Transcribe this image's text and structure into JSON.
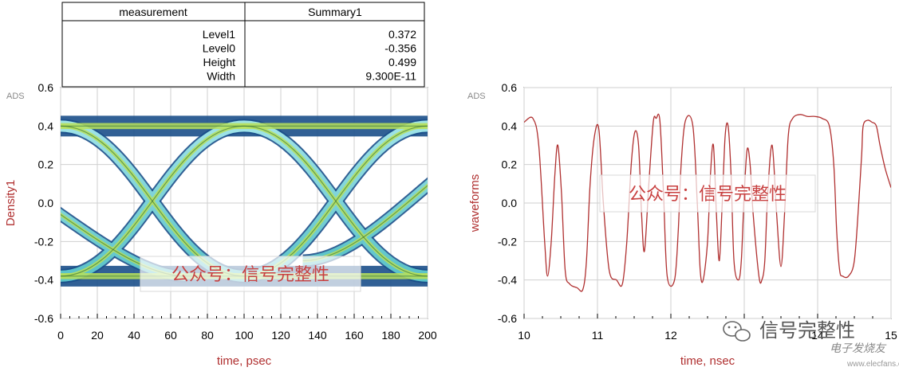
{
  "measurement_table": {
    "header": [
      "measurement",
      "Summary1"
    ],
    "rows": [
      {
        "name": "Level1",
        "value": "0.372"
      },
      {
        "name": "Level0",
        "value": "-0.356"
      },
      {
        "name": "Height",
        "value": "0.499"
      },
      {
        "name": "Width",
        "value": "9.300E-11"
      }
    ]
  },
  "chart_data": [
    {
      "type": "line",
      "title": "",
      "corner_label": "ADS",
      "xlabel": "time, psec",
      "ylabel": "Density1",
      "xlim": [
        0,
        200
      ],
      "ylim": [
        -0.6,
        0.6
      ],
      "x_ticks": [
        0,
        20,
        40,
        60,
        80,
        100,
        120,
        140,
        160,
        180,
        200
      ],
      "y_ticks": [
        -0.6,
        -0.4,
        -0.2,
        0.0,
        0.2,
        0.4,
        0.6
      ],
      "grid": true,
      "level_high": 0.4,
      "level_low": -0.38,
      "eye_crossings": [
        50,
        150
      ],
      "watermark": "公众号：信号完整性"
    },
    {
      "type": "line",
      "title": "",
      "corner_label": "ADS",
      "xlabel": "time, nsec",
      "ylabel": "waveforms",
      "xlim": [
        10,
        15
      ],
      "ylim": [
        -0.6,
        0.6
      ],
      "x_ticks": [
        10,
        11,
        12,
        13,
        14,
        15
      ],
      "y_ticks": [
        -0.6,
        -0.4,
        -0.2,
        0.0,
        0.2,
        0.4,
        0.6
      ],
      "grid": true,
      "line_color": "#b03030",
      "series": [
        {
          "x": [
            10.0,
            10.12,
            10.2,
            10.28,
            10.32,
            10.37,
            10.42,
            10.46,
            10.51,
            10.56,
            10.62,
            10.72,
            10.8,
            10.85,
            10.9,
            10.96,
            11.02,
            11.08,
            11.16,
            11.26,
            11.34,
            11.4,
            11.46,
            11.51,
            11.56,
            11.6,
            11.64,
            11.7,
            11.76,
            11.8,
            11.85,
            11.9,
            11.95,
            12.05,
            12.1,
            12.14,
            12.2,
            12.3,
            12.36,
            12.4,
            12.44,
            12.5,
            12.54,
            12.58,
            12.62,
            12.66,
            12.7,
            12.74,
            12.78,
            12.82,
            12.86,
            12.92,
            12.96,
            13.0,
            13.04,
            13.08,
            13.12,
            13.2,
            13.24,
            13.28,
            13.32,
            13.38,
            13.44,
            13.5,
            13.55,
            13.6,
            13.66,
            13.76,
            13.86,
            13.96,
            14.06,
            14.16,
            14.22,
            14.26,
            14.3,
            14.34,
            14.42,
            14.5,
            14.56,
            14.6,
            14.62,
            14.68,
            14.74,
            14.8,
            14.85,
            14.92,
            15.0
          ],
          "y": [
            0.42,
            0.44,
            0.3,
            -0.2,
            -0.38,
            -0.2,
            0.15,
            0.3,
            0.05,
            -0.35,
            -0.42,
            -0.44,
            -0.45,
            -0.3,
            0.1,
            0.35,
            0.38,
            0.0,
            -0.35,
            -0.4,
            -0.42,
            -0.2,
            0.2,
            0.37,
            0.3,
            -0.05,
            -0.25,
            0.1,
            0.42,
            0.44,
            0.43,
            0.05,
            -0.38,
            -0.4,
            -0.15,
            0.2,
            0.43,
            0.4,
            0.0,
            -0.35,
            -0.4,
            -0.2,
            0.15,
            0.3,
            -0.05,
            -0.3,
            0.0,
            0.35,
            0.4,
            0.15,
            -0.3,
            -0.4,
            -0.3,
            0.05,
            0.28,
            0.2,
            -0.05,
            -0.38,
            -0.4,
            -0.3,
            0.05,
            0.3,
            -0.05,
            -0.33,
            -0.05,
            0.35,
            0.44,
            0.46,
            0.45,
            0.45,
            0.44,
            0.4,
            0.2,
            -0.15,
            -0.35,
            -0.38,
            -0.38,
            -0.3,
            0.0,
            0.25,
            0.4,
            0.43,
            0.42,
            0.4,
            0.3,
            0.18,
            0.08
          ]
        }
      ],
      "watermark": "公众号：信号完整性"
    }
  ],
  "brand_badge": {
    "text": "信号完整性",
    "subtext": "电子发烧友"
  },
  "site_watermark": "www.elecfans.com"
}
